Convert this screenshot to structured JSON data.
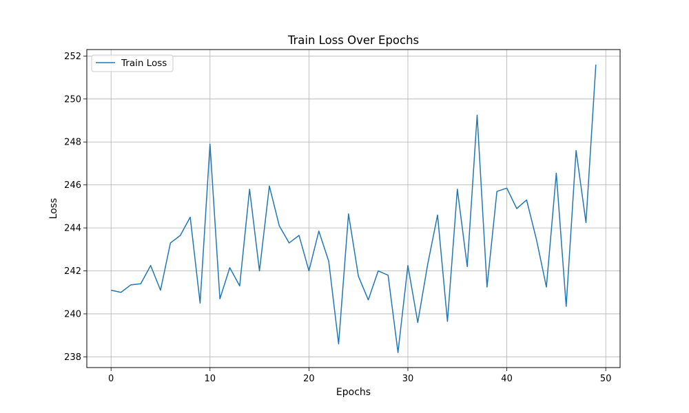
{
  "chart_data": {
    "type": "line",
    "title": "Train Loss Over Epochs",
    "xlabel": "Epochs",
    "ylabel": "Loss",
    "xlim": [
      -2.45,
      51.45
    ],
    "ylim": [
      237.5,
      252.3
    ],
    "xticks": [
      0,
      10,
      20,
      30,
      40,
      50
    ],
    "yticks": [
      238,
      240,
      242,
      244,
      246,
      248,
      250,
      252
    ],
    "grid": true,
    "legend_position": "top-left",
    "series": [
      {
        "name": "Train Loss",
        "color": "#1f77b4",
        "x": [
          0,
          1,
          2,
          3,
          4,
          5,
          6,
          7,
          8,
          9,
          10,
          11,
          12,
          13,
          14,
          15,
          16,
          17,
          18,
          19,
          20,
          21,
          22,
          23,
          24,
          25,
          26,
          27,
          28,
          29,
          30,
          31,
          32,
          33,
          34,
          35,
          36,
          37,
          38,
          39,
          40,
          41,
          42,
          43,
          44,
          45,
          46,
          47,
          48,
          49
        ],
        "values": [
          241.1,
          241.0,
          241.35,
          241.4,
          242.25,
          241.1,
          243.3,
          243.65,
          244.5,
          240.5,
          247.9,
          240.7,
          242.15,
          241.3,
          245.8,
          242.0,
          245.95,
          244.1,
          243.3,
          243.65,
          242.0,
          243.85,
          242.45,
          238.6,
          244.65,
          241.75,
          240.65,
          242.0,
          241.8,
          238.2,
          242.25,
          239.6,
          242.3,
          244.6,
          239.65,
          245.8,
          242.2,
          249.25,
          241.25,
          245.7,
          245.85,
          244.9,
          245.3,
          243.45,
          241.25,
          246.55,
          240.35,
          247.6,
          244.25,
          251.6
        ]
      }
    ]
  }
}
